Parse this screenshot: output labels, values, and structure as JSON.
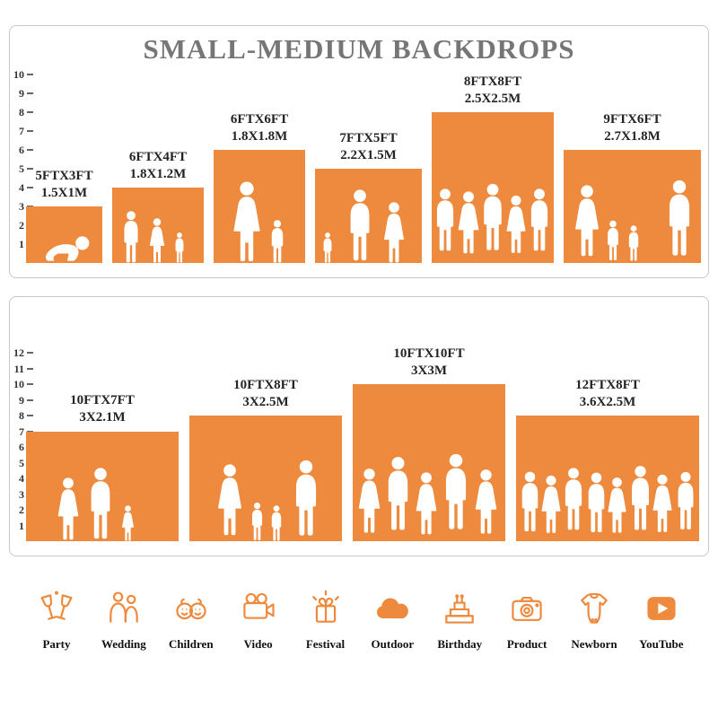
{
  "title": "SMALL-MEDIUM BACKDROPS",
  "colors": {
    "accent": "#EE8A3D",
    "title": "#767676"
  },
  "panel_top": {
    "ruler": [
      "1",
      "2",
      "3",
      "4",
      "5",
      "6",
      "7",
      "8",
      "9",
      "10"
    ],
    "blocks": [
      {
        "ft": "5FTX3FT",
        "m": "1.5X1M",
        "w": 5,
        "h": 3
      },
      {
        "ft": "6FTX4FT",
        "m": "1.8X1.2M",
        "w": 6,
        "h": 4
      },
      {
        "ft": "6FTX6FT",
        "m": "1.8X1.8M",
        "w": 6,
        "h": 6
      },
      {
        "ft": "7FTX5FT",
        "m": "2.2X1.5M",
        "w": 7,
        "h": 5
      },
      {
        "ft": "8FTX8FT",
        "m": "2.5X2.5M",
        "w": 8,
        "h": 8
      },
      {
        "ft": "9FTX6FT",
        "m": "2.7X1.8M",
        "w": 9,
        "h": 6
      }
    ]
  },
  "panel_bottom": {
    "ruler": [
      "1",
      "2",
      "3",
      "4",
      "5",
      "6",
      "7",
      "8",
      "9",
      "10",
      "11",
      "12"
    ],
    "blocks": [
      {
        "ft": "10FTX7FT",
        "m": "3X2.1M",
        "w": 10,
        "h": 7
      },
      {
        "ft": "10FTX8FT",
        "m": "3X2.5M",
        "w": 10,
        "h": 8
      },
      {
        "ft": "10FTX10FT",
        "m": "3X3M",
        "w": 10,
        "h": 10
      },
      {
        "ft": "12FTX8FT",
        "m": "3.6X2.5M",
        "w": 12,
        "h": 8
      }
    ]
  },
  "categories": [
    {
      "label": "Party",
      "icon": "party-icon"
    },
    {
      "label": "Wedding",
      "icon": "wedding-icon"
    },
    {
      "label": "Children",
      "icon": "children-icon"
    },
    {
      "label": "Video",
      "icon": "video-icon"
    },
    {
      "label": "Festival",
      "icon": "festival-icon"
    },
    {
      "label": "Outdoor",
      "icon": "outdoor-icon"
    },
    {
      "label": "Birthday",
      "icon": "birthday-icon"
    },
    {
      "label": "Product",
      "icon": "product-icon"
    },
    {
      "label": "Newborn",
      "icon": "newborn-icon"
    },
    {
      "label": "YouTube",
      "icon": "youtube-icon"
    }
  ]
}
